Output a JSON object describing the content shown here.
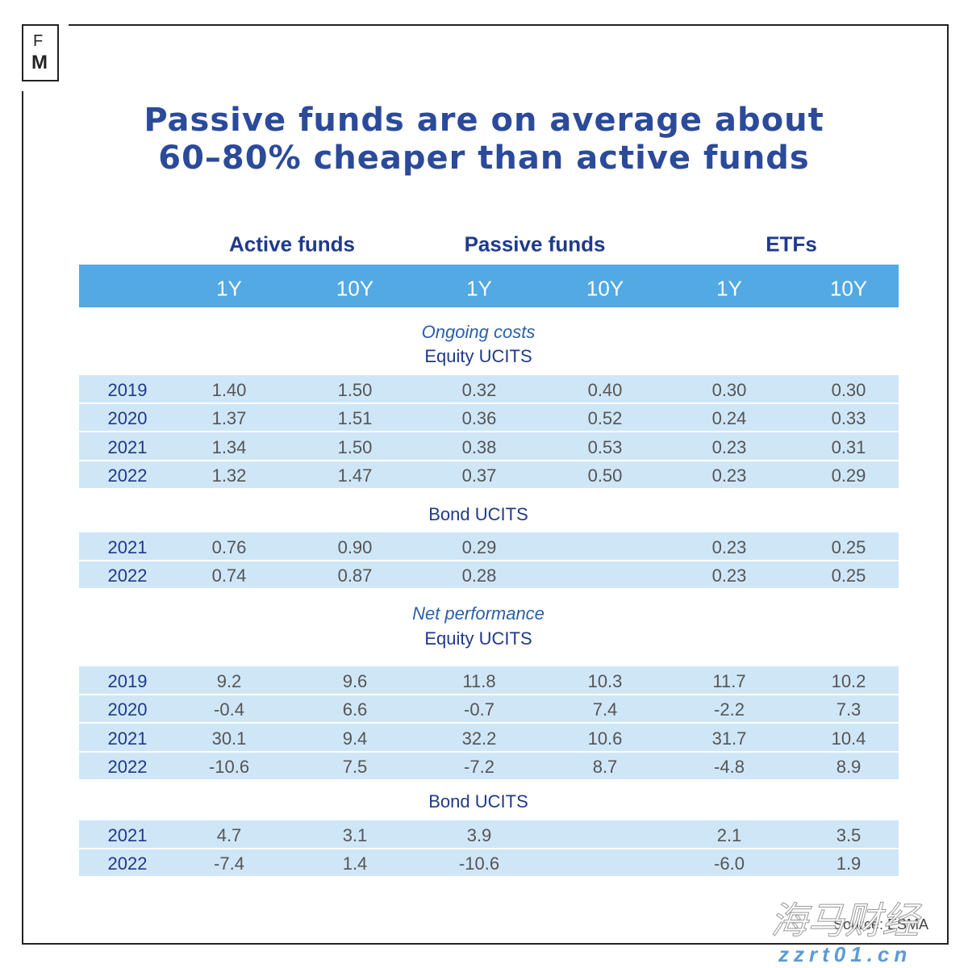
{
  "logo": {
    "top": "F",
    "bottom": "M"
  },
  "title": [
    "Passive funds are on average about",
    "60–80% cheaper than active funds"
  ],
  "table": {
    "groups": [
      {
        "label": "Active funds",
        "columns": [
          "1Y",
          "10Y"
        ]
      },
      {
        "label": "Passive funds",
        "columns": [
          "1Y",
          "10Y"
        ]
      },
      {
        "label": "ETFs",
        "columns": [
          "1Y",
          "10Y"
        ]
      }
    ],
    "sections": [
      {
        "title": "Ongoing costs",
        "subsections": [
          {
            "title": "Equity UCITS",
            "rows": [
              {
                "year": "2019",
                "values": [
                  "1.40",
                  "1.50",
                  "0.32",
                  "0.40",
                  "0.30",
                  "0.30"
                ]
              },
              {
                "year": "2020",
                "values": [
                  "1.37",
                  "1.51",
                  "0.36",
                  "0.52",
                  "0.24",
                  "0.33"
                ]
              },
              {
                "year": "2021",
                "values": [
                  "1.34",
                  "1.50",
                  "0.38",
                  "0.53",
                  "0.23",
                  "0.31"
                ]
              },
              {
                "year": "2022",
                "values": [
                  "1.32",
                  "1.47",
                  "0.37",
                  "0.50",
                  "0.23",
                  "0.29"
                ]
              }
            ]
          },
          {
            "title": "Bond UCITS",
            "rows": [
              {
                "year": "2021",
                "values": [
                  "0.76",
                  "0.90",
                  "0.29",
                  null,
                  "0.23",
                  "0.25"
                ]
              },
              {
                "year": "2022",
                "values": [
                  "0.74",
                  "0.87",
                  "0.28",
                  null,
                  "0.23",
                  "0.25"
                ]
              }
            ]
          }
        ]
      },
      {
        "title": "Net performance",
        "subsections": [
          {
            "title": "Equity UCITS",
            "rows": [
              {
                "year": "2019",
                "values": [
                  "9.2",
                  "9.6",
                  "11.8",
                  "10.3",
                  "11.7",
                  "10.2"
                ]
              },
              {
                "year": "2020",
                "values": [
                  "-0.4",
                  "6.6",
                  "-0.7",
                  "7.4",
                  "-2.2",
                  "7.3"
                ]
              },
              {
                "year": "2021",
                "values": [
                  "30.1",
                  "9.4",
                  "32.2",
                  "10.6",
                  "31.7",
                  "10.4"
                ]
              },
              {
                "year": "2022",
                "values": [
                  "-10.6",
                  "7.5",
                  "-7.2",
                  "8.7",
                  "-4.8",
                  "8.9"
                ]
              }
            ]
          },
          {
            "title": "Bond UCITS",
            "rows": [
              {
                "year": "2021",
                "values": [
                  "4.7",
                  "3.1",
                  "3.9",
                  null,
                  "2.1",
                  "3.5"
                ]
              },
              {
                "year": "2022",
                "values": [
                  "-7.4",
                  "1.4",
                  "-10.6",
                  null,
                  "-6.0",
                  "1.9"
                ]
              }
            ]
          }
        ]
      }
    ]
  },
  "source": "Source: ESMA",
  "watermark": {
    "text": "海马财经",
    "url": "zzrt01.cn"
  }
}
